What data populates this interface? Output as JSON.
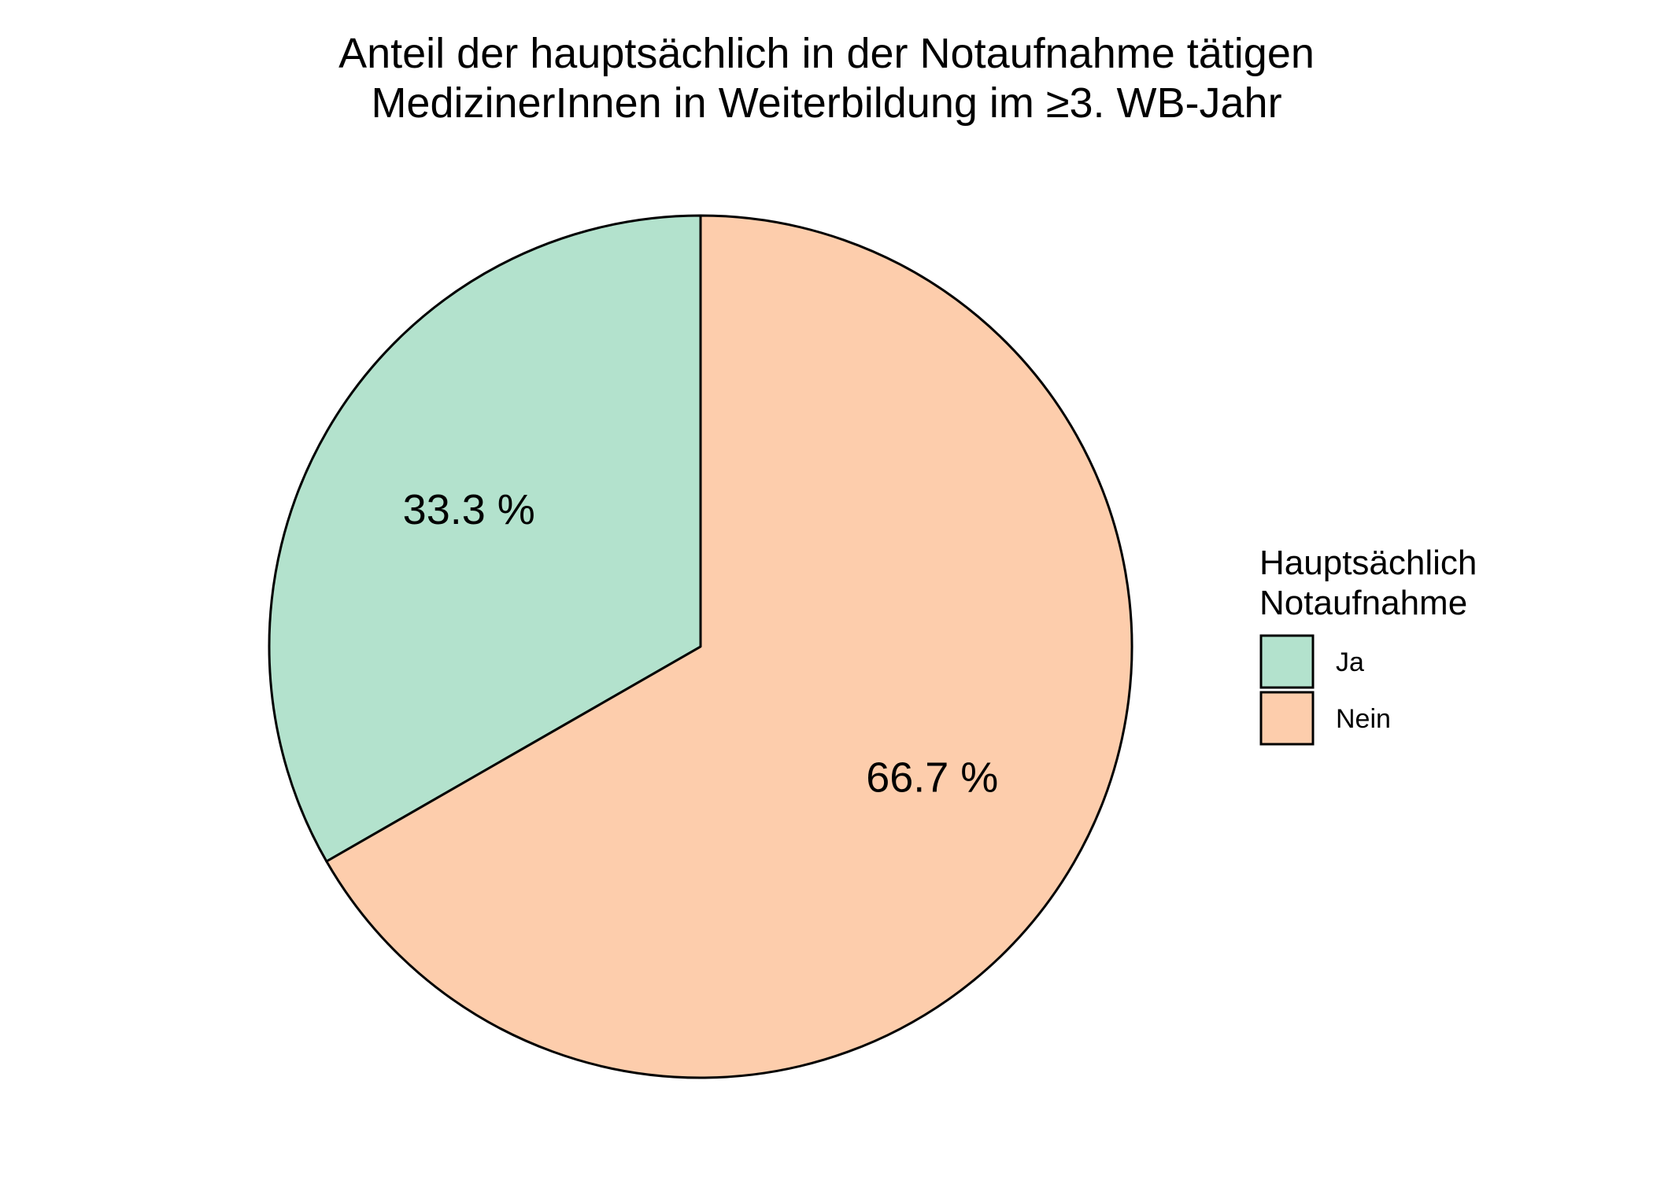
{
  "chart_data": {
    "type": "pie",
    "title_lines": [
      "Anteil der hauptsächlich in der Notaufnahme tätigen",
      "MedizinerInnen in Weiterbildung im ≥3. WB-Jahr"
    ],
    "categories": [
      "Ja",
      "Nein"
    ],
    "values": [
      33.3,
      66.7
    ],
    "labels": [
      "33.3 %",
      "66.7 %"
    ],
    "colors": [
      "#B3E2CD",
      "#FDCDAC"
    ],
    "legend": {
      "title_lines": [
        "Hauptsächlich",
        "Notaufnahme"
      ],
      "position": "right"
    }
  }
}
